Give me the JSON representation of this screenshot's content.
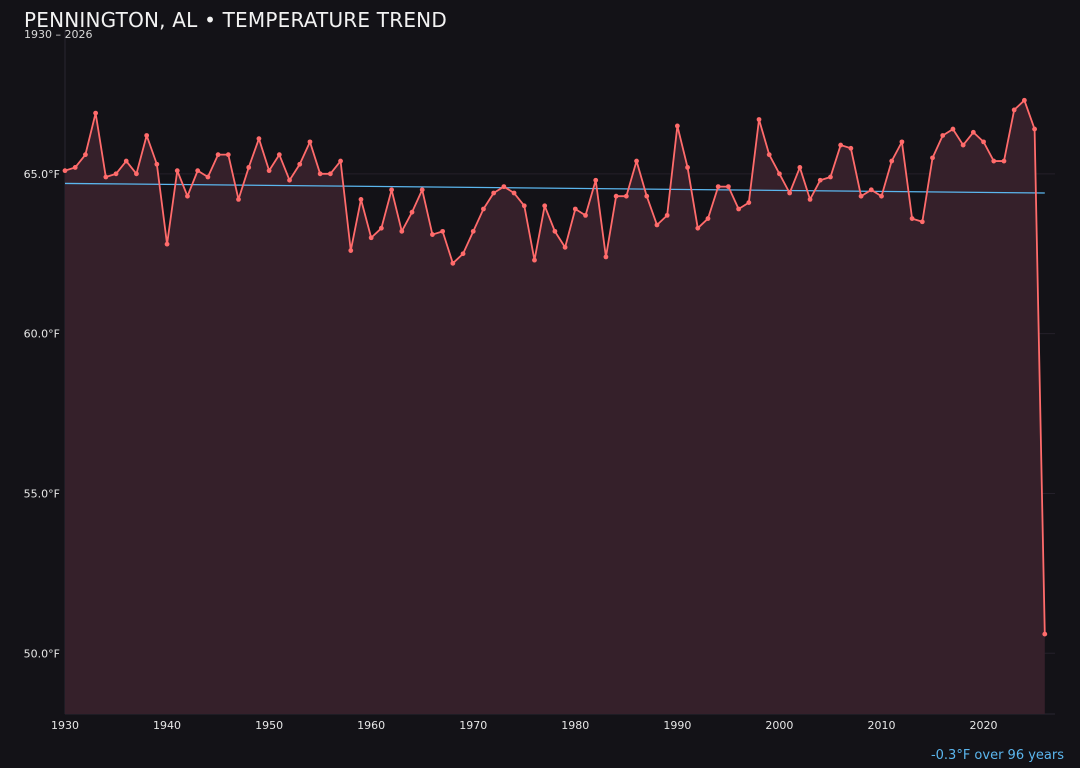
{
  "header": {
    "title": "PENNINGTON, AL • TEMPERATURE TREND",
    "subtitle": "1930 – 2026"
  },
  "footnote": {
    "text": "-0.3°F over 96 years"
  },
  "colors": {
    "background": "#131217",
    "series_line": "#ff6b6b",
    "series_fill": "#35202a",
    "trend_line": "#5bb6ee",
    "gridline": "#24202a",
    "axis_text": "#e6e6e6",
    "footnote": "#5bb6ee"
  },
  "chart_data": {
    "type": "line",
    "title": "PENNINGTON, AL • TEMPERATURE TREND",
    "subtitle": "1930 – 2026",
    "xlabel": "",
    "ylabel": "",
    "x": [
      1930,
      1931,
      1932,
      1933,
      1934,
      1935,
      1936,
      1937,
      1938,
      1939,
      1940,
      1941,
      1942,
      1943,
      1944,
      1945,
      1946,
      1947,
      1948,
      1949,
      1950,
      1951,
      1952,
      1953,
      1954,
      1955,
      1956,
      1957,
      1958,
      1959,
      1960,
      1961,
      1962,
      1963,
      1964,
      1965,
      1966,
      1967,
      1968,
      1969,
      1970,
      1971,
      1972,
      1973,
      1974,
      1975,
      1976,
      1977,
      1978,
      1979,
      1980,
      1981,
      1982,
      1983,
      1984,
      1985,
      1986,
      1987,
      1988,
      1989,
      1990,
      1991,
      1992,
      1993,
      1994,
      1995,
      1996,
      1997,
      1998,
      1999,
      2000,
      2001,
      2002,
      2003,
      2004,
      2005,
      2006,
      2007,
      2008,
      2009,
      2010,
      2011,
      2012,
      2013,
      2014,
      2015,
      2016,
      2017,
      2018,
      2019,
      2020,
      2021,
      2022,
      2023,
      2024,
      2025,
      2026
    ],
    "series": [
      {
        "values": [
          65.1,
          65.2,
          65.6,
          66.9,
          64.9,
          65.0,
          65.4,
          65.0,
          66.2,
          65.3,
          62.8,
          65.1,
          64.3,
          65.1,
          64.9,
          65.6,
          65.6,
          64.2,
          65.2,
          66.1,
          65.1,
          65.6,
          64.8,
          65.3,
          66.0,
          65.0,
          65.0,
          65.4,
          62.6,
          64.2,
          63.0,
          63.3,
          64.5,
          63.2,
          63.8,
          64.5,
          63.1,
          63.2,
          62.2,
          62.5,
          63.2,
          63.9,
          64.4,
          64.6,
          64.4,
          64.0,
          62.3,
          64.0,
          63.2,
          62.7,
          63.9,
          63.7,
          64.8,
          62.4,
          64.3,
          64.3,
          65.4,
          64.3,
          63.4,
          63.7,
          66.5,
          65.2,
          63.3,
          63.6,
          64.6,
          64.6,
          63.9,
          64.1,
          66.7,
          65.6,
          65.0,
          64.4,
          65.2,
          64.2,
          64.8,
          64.9,
          65.9,
          65.8,
          64.3,
          64.5,
          64.3,
          65.4,
          66.0,
          63.6,
          63.5,
          65.5,
          66.2,
          66.4,
          65.9,
          66.3,
          66.0,
          65.4,
          65.4,
          67.0,
          67.3,
          66.4,
          50.6
        ]
      }
    ],
    "trend": {
      "start": [
        1930,
        64.7
      ],
      "end": [
        2026,
        64.4
      ]
    },
    "xlim": [
      1930,
      2027
    ],
    "ylim": [
      48.1,
      69.5
    ],
    "x_ticks": [
      1930,
      1940,
      1950,
      1960,
      1970,
      1980,
      1990,
      2000,
      2010,
      2020
    ],
    "y_ticks": [
      50.0,
      55.0,
      60.0,
      65.0
    ],
    "tick_labels": {
      "y": [
        "50.0°F",
        "55.0°F",
        "60.0°F",
        "65.0°F"
      ],
      "x": [
        "1930",
        "1940",
        "1950",
        "1960",
        "1970",
        "1980",
        "1990",
        "2000",
        "2010",
        "2020"
      ]
    },
    "grid": true,
    "legend": "none"
  }
}
